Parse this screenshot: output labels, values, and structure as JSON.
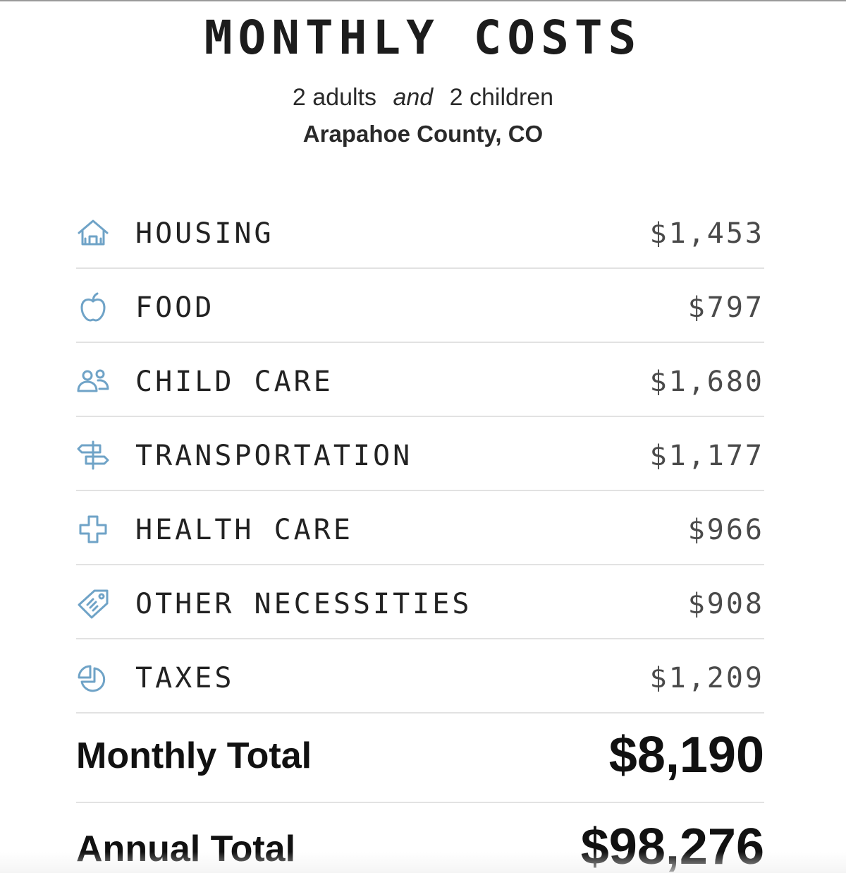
{
  "header": {
    "title": "MONTHLY COSTS",
    "adults": "2 adults",
    "conjunction": "and",
    "children": "2 children",
    "location": "Arapahoe County, CO"
  },
  "accent_color": "#6fa3c7",
  "costs": [
    {
      "icon": "house-icon",
      "label": "HOUSING",
      "amount": "$1,453"
    },
    {
      "icon": "apple-icon",
      "label": "FOOD",
      "amount": "$797"
    },
    {
      "icon": "people-icon",
      "label": "CHILD CARE",
      "amount": "$1,680"
    },
    {
      "icon": "signpost-icon",
      "label": "TRANSPORTATION",
      "amount": "$1,177"
    },
    {
      "icon": "medical-cross-icon",
      "label": "HEALTH CARE",
      "amount": "$966"
    },
    {
      "icon": "price-tag-icon",
      "label": "OTHER NECESSITIES",
      "amount": "$908"
    },
    {
      "icon": "pie-chart-icon",
      "label": "TAXES",
      "amount": "$1,209"
    }
  ],
  "totals": {
    "monthly_label": "Monthly Total",
    "monthly_value": "$8,190",
    "annual_label": "Annual Total",
    "annual_value": "$98,276"
  }
}
